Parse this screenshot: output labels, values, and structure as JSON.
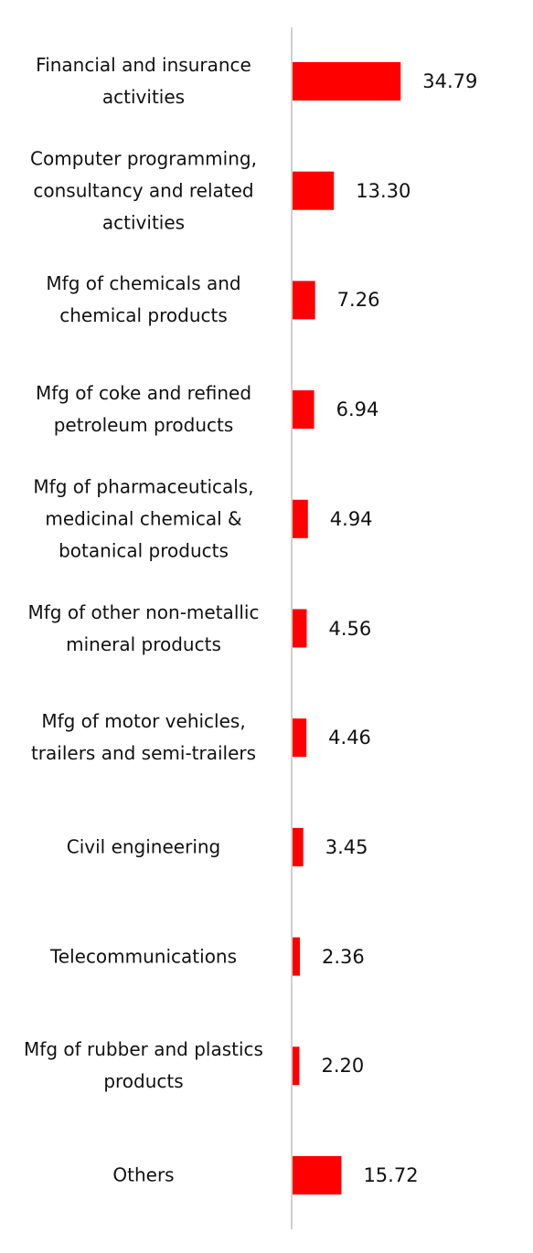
{
  "chart_data": {
    "type": "bar",
    "orientation": "horizontal",
    "categories": [
      "Financial and insurance activities",
      "Computer programming, consultancy and related activities",
      "Mfg of chemicals and chemical products",
      "Mfg of coke and refined petroleum products",
      "Mfg of pharmaceuticals, medicinal chemical & botanical products",
      "Mfg of other non-metallic mineral products",
      "Mfg of motor vehicles, trailers and semi-trailers",
      "Civil engineering",
      "Telecommunications",
      "Mfg of rubber and plastics products",
      "Others"
    ],
    "values": [
      34.79,
      13.3,
      7.26,
      6.94,
      4.94,
      4.56,
      4.46,
      3.45,
      2.36,
      2.2,
      15.72
    ],
    "value_labels": [
      "34.79",
      "13.30",
      "7.26",
      "6.94",
      "4.94",
      "4.56",
      "4.46",
      "3.45",
      "2.36",
      "2.20",
      "15.72"
    ],
    "color": "#ff0000",
    "xlim": [
      0,
      40
    ]
  }
}
